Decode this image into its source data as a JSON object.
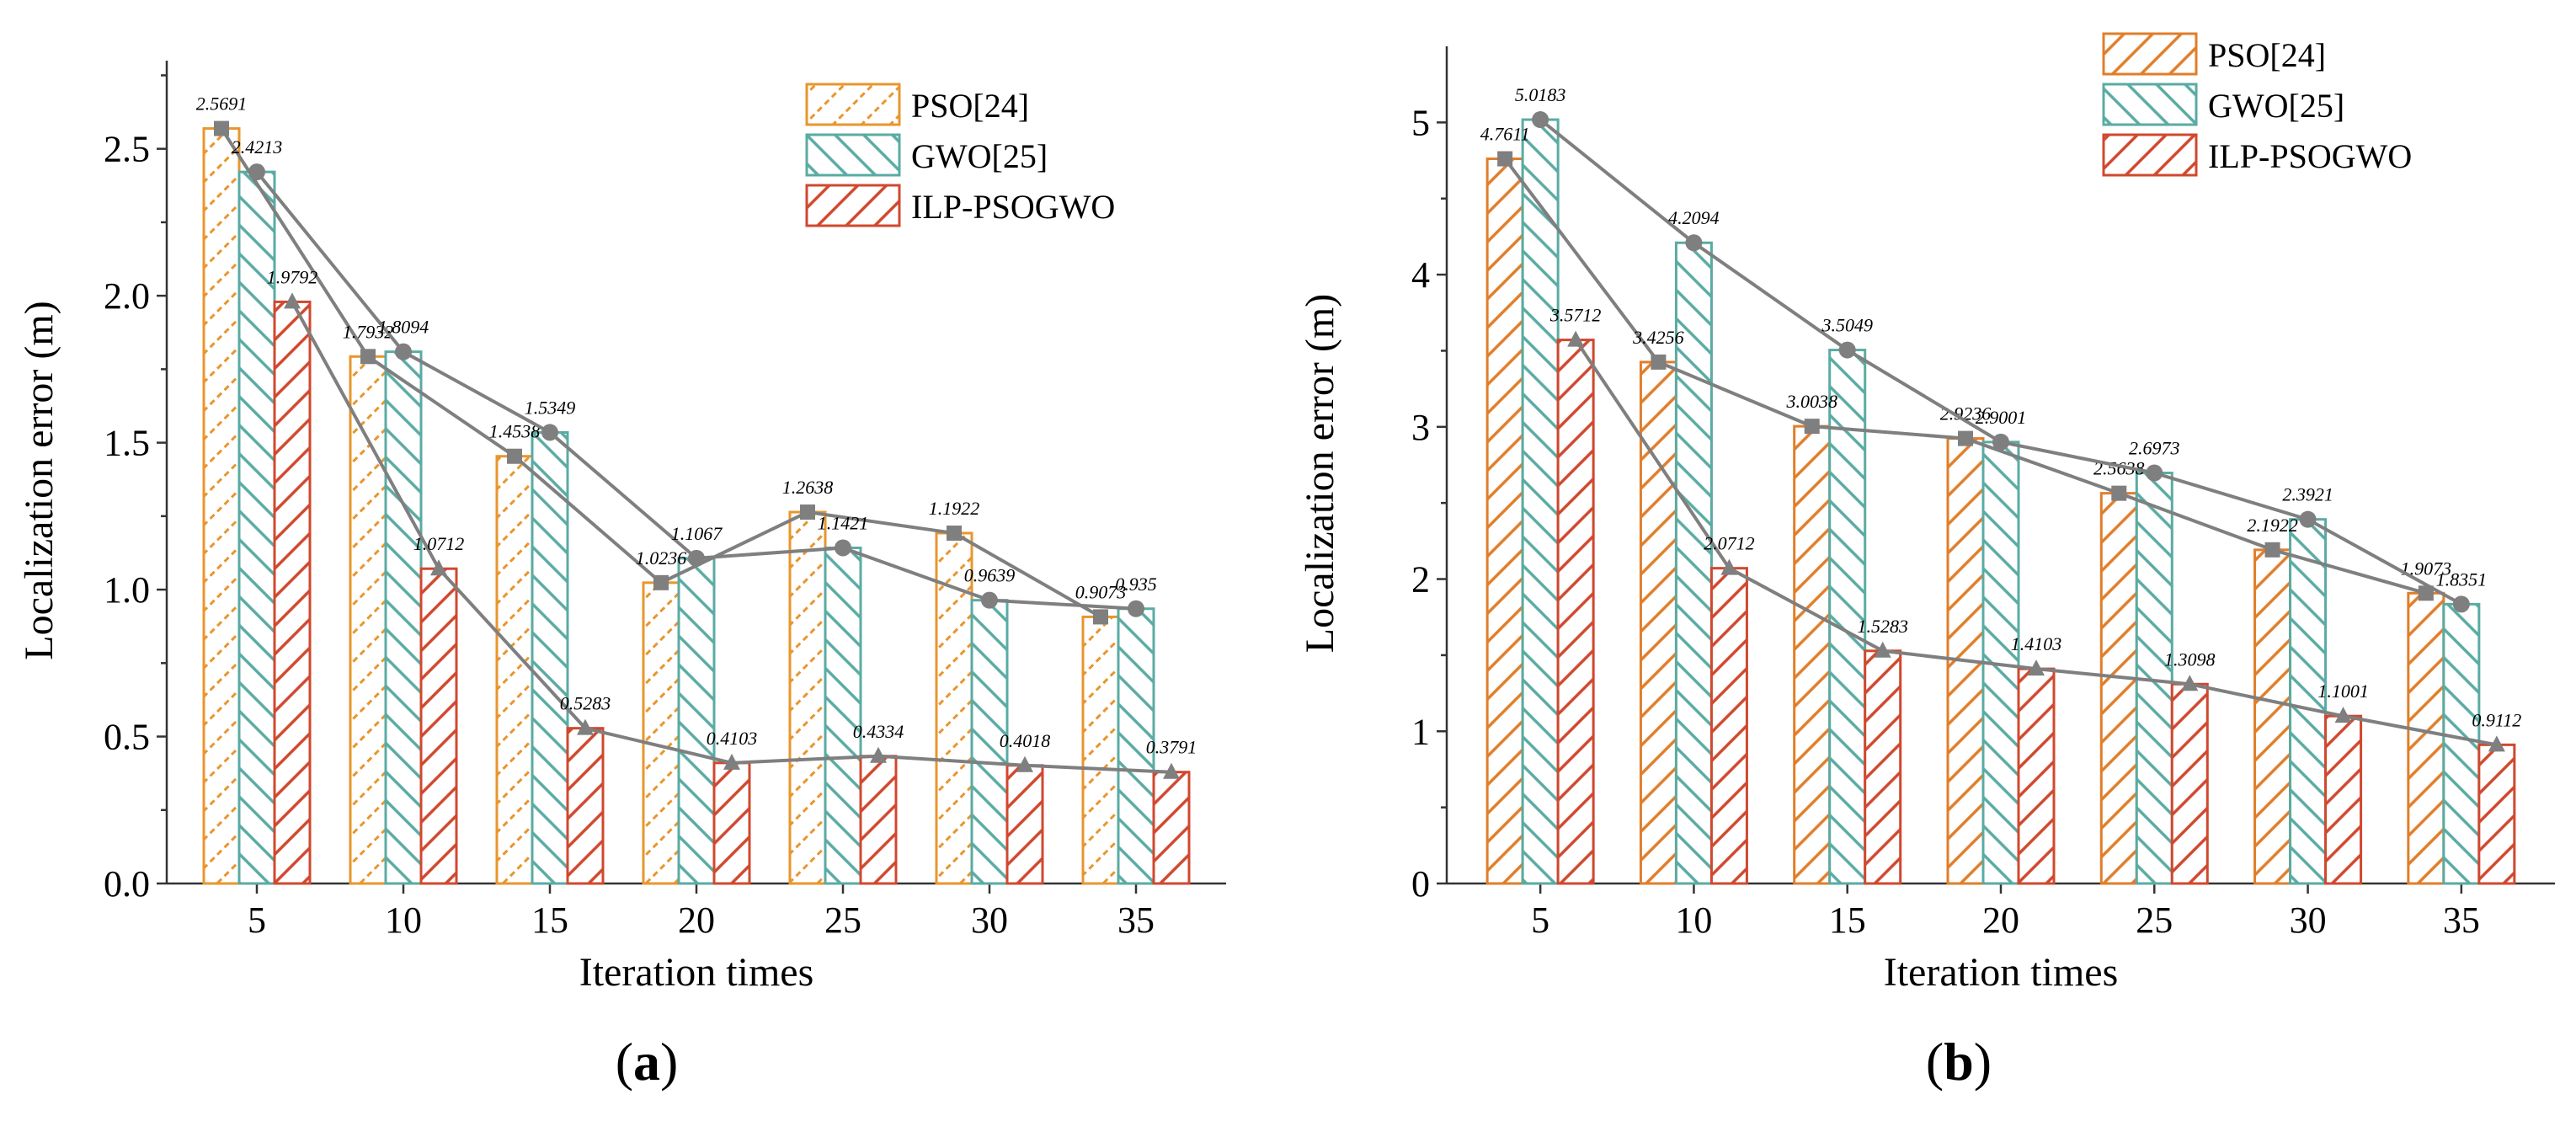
{
  "chart_data": [
    {
      "panel": "(a)",
      "type": "bar",
      "xlabel": "Iteration times",
      "ylabel": "Localization error (m)",
      "categories": [
        "5",
        "10",
        "15",
        "20",
        "25",
        "30",
        "35"
      ],
      "ylim": [
        0,
        2.8
      ],
      "yticks": [
        "0.0",
        "0.5",
        "1.0",
        "1.5",
        "2.0",
        "2.5"
      ],
      "legend_position": "top-right",
      "series": [
        {
          "name": "PSO[24]",
          "color": "#e8962e",
          "values": [
            2.5691,
            1.7932,
            1.4538,
            1.0236,
            1.2638,
            1.1922,
            0.9073
          ],
          "labels": [
            "2.5691",
            "1.7932",
            "1.4538",
            "1.0236",
            "1.2638",
            "1.1922",
            "0.9073"
          ],
          "marker": "square"
        },
        {
          "name": "GWO[25]",
          "color": "#5aaba3",
          "values": [
            2.4213,
            1.8094,
            1.5349,
            1.1067,
            1.1421,
            0.9639,
            0.935
          ],
          "labels": [
            "2.4213",
            "1.8094",
            "1.5349",
            "1.1067",
            "1.1421",
            "0.9639",
            "0.935"
          ],
          "marker": "circle"
        },
        {
          "name": "ILP-PSOGWO",
          "color": "#d0482f",
          "values": [
            1.9792,
            1.0712,
            0.5283,
            0.4103,
            0.4334,
            0.4018,
            0.3791
          ],
          "labels": [
            "1.9792",
            "1.0712",
            "0.5283",
            "0.4103",
            "0.4334",
            "0.4018",
            "0.3791"
          ],
          "marker": "triangle"
        }
      ]
    },
    {
      "panel": "(b)",
      "type": "bar",
      "xlabel": "Iteration times",
      "ylabel": "Localization error (m)",
      "categories": [
        "5",
        "10",
        "15",
        "20",
        "25",
        "30",
        "35"
      ],
      "ylim": [
        0,
        5.5
      ],
      "yticks": [
        "0",
        "1",
        "2",
        "3",
        "4",
        "5"
      ],
      "legend_position": "top-right",
      "series": [
        {
          "name": "PSO[24]",
          "color": "#e07e2a",
          "values": [
            4.7611,
            3.4256,
            3.0038,
            2.9236,
            2.5638,
            2.1922,
            1.9073
          ],
          "labels": [
            "4.7611",
            "3.4256",
            "3.0038",
            "2.9236",
            "2.5638",
            "2.1922",
            "1.9073"
          ],
          "marker": "square"
        },
        {
          "name": "GWO[25]",
          "color": "#5aaba3",
          "values": [
            5.0183,
            4.2094,
            3.5049,
            2.9001,
            2.6973,
            2.3921,
            1.8351
          ],
          "labels": [
            "5.0183",
            "4.2094",
            "3.5049",
            "2.9001",
            "2.6973",
            "2.3921",
            "1.8351"
          ],
          "marker": "circle"
        },
        {
          "name": "ILP-PSOGWO",
          "color": "#d0482f",
          "values": [
            3.5712,
            2.0712,
            1.5283,
            1.4103,
            1.3098,
            1.1001,
            0.9112
          ],
          "labels": [
            "3.5712",
            "2.0712",
            "1.5283",
            "1.4103",
            "1.3098",
            "1.1001",
            "0.9112"
          ],
          "marker": "triangle"
        }
      ]
    }
  ]
}
